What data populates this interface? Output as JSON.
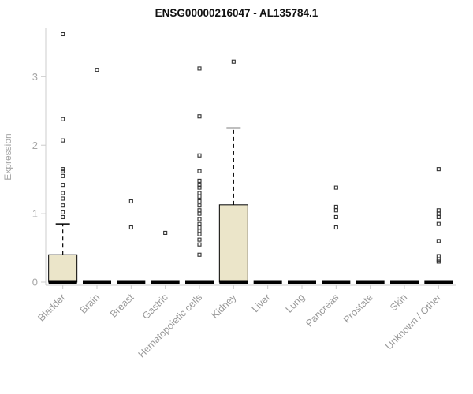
{
  "chart_data": {
    "type": "boxplot",
    "title": "ENSG00000216047 - AL135784.1",
    "xlabel": "",
    "ylabel": "Expression",
    "ylim": [
      0,
      3.66
    ],
    "yticks": [
      0,
      1,
      2,
      3
    ],
    "grid": false,
    "legend": "none",
    "categories": [
      "Bladder",
      "Brain",
      "Breast",
      "Gastric",
      "Hematopoietic cells",
      "Kidney",
      "Liver",
      "Lung",
      "Pancreas",
      "Prostate",
      "Skin",
      "Unknown / Other"
    ],
    "boxes": [
      {
        "category": "Bladder",
        "low": 0,
        "q1": 0,
        "median": 0,
        "q3": 0.4,
        "high": 0.85,
        "outliers": [
          0.95,
          1.02,
          1.12,
          1.22,
          1.3,
          1.42,
          1.55,
          1.62,
          1.65,
          2.07,
          2.38,
          3.62
        ]
      },
      {
        "category": "Brain",
        "low": 0,
        "q1": 0,
        "median": 0,
        "q3": 0,
        "high": 0,
        "outliers": [
          3.1
        ]
      },
      {
        "category": "Breast",
        "low": 0,
        "q1": 0,
        "median": 0,
        "q3": 0,
        "high": 0,
        "outliers": [
          0.8,
          1.18
        ]
      },
      {
        "category": "Gastric",
        "low": 0,
        "q1": 0,
        "median": 0,
        "q3": 0,
        "high": 0,
        "outliers": [
          0.72
        ]
      },
      {
        "category": "Hematopoietic cells",
        "low": 0,
        "q1": 0,
        "median": 0,
        "q3": 0,
        "high": 0,
        "outliers": [
          0.4,
          0.55,
          0.62,
          0.7,
          0.75,
          0.8,
          0.85,
          0.92,
          1.0,
          1.05,
          1.12,
          1.18,
          1.25,
          1.3,
          1.38,
          1.42,
          1.48,
          1.62,
          1.85,
          2.42,
          3.12
        ]
      },
      {
        "category": "Kidney",
        "low": 0,
        "q1": 0,
        "median": 0,
        "q3": 1.13,
        "high": 2.25,
        "outliers": [
          3.22
        ]
      },
      {
        "category": "Liver",
        "low": 0,
        "q1": 0,
        "median": 0,
        "q3": 0,
        "high": 0,
        "outliers": []
      },
      {
        "category": "Lung",
        "low": 0,
        "q1": 0,
        "median": 0,
        "q3": 0,
        "high": 0,
        "outliers": []
      },
      {
        "category": "Pancreas",
        "low": 0,
        "q1": 0,
        "median": 0,
        "q3": 0,
        "high": 0,
        "outliers": [
          0.8,
          0.95,
          1.05,
          1.1,
          1.38
        ]
      },
      {
        "category": "Prostate",
        "low": 0,
        "q1": 0,
        "median": 0,
        "q3": 0,
        "high": 0,
        "outliers": []
      },
      {
        "category": "Skin",
        "low": 0,
        "q1": 0,
        "median": 0,
        "q3": 0,
        "high": 0,
        "outliers": []
      },
      {
        "category": "Unknown / Other",
        "low": 0,
        "q1": 0,
        "median": 0,
        "q3": 0,
        "high": 0,
        "outliers": [
          0.3,
          0.33,
          0.38,
          0.6,
          0.85,
          0.95,
          1.0,
          1.05,
          1.65
        ]
      }
    ],
    "colors": {
      "box_fill": "#ebe5c9",
      "box_stroke": "#000000",
      "median": "#000000",
      "whisker": "#000000",
      "outlier": "#333333",
      "axis": "#cccccc",
      "tick_label": "#a6a6a6",
      "category_label": "#999999",
      "title": "#111111"
    }
  }
}
